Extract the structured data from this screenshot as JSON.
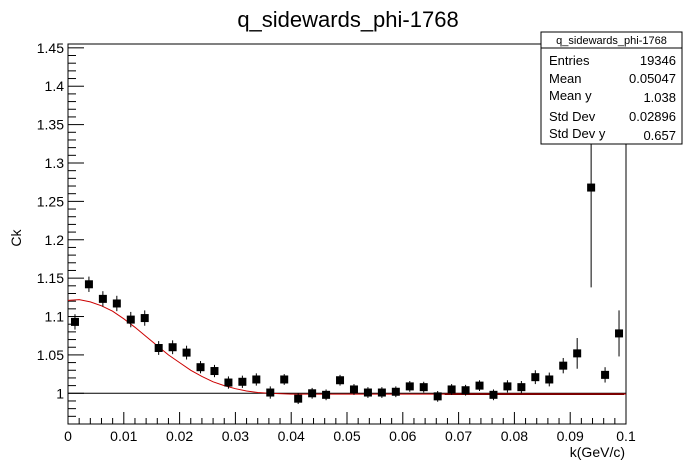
{
  "chart_data": {
    "type": "scatter",
    "title": "q_sidewards_phi-1768",
    "xlabel": "k(GeV/c)",
    "ylabel": "Ck",
    "xlim": [
      0,
      0.1
    ],
    "ylim": [
      0.96,
      1.455
    ],
    "x_ticks": [
      "0",
      "0.01",
      "0.02",
      "0.03",
      "0.04",
      "0.05",
      "0.06",
      "0.07",
      "0.08",
      "0.09",
      "0.1"
    ],
    "y_ticks": [
      "1",
      "1.05",
      "1.1",
      "1.15",
      "1.2",
      "1.25",
      "1.3",
      "1.35",
      "1.4",
      "1.45"
    ],
    "reference_line": 1.0,
    "series": [
      {
        "points": [
          {
            "x": 0.00125,
            "y": 1.093,
            "err": 0.01
          },
          {
            "x": 0.00375,
            "y": 1.142,
            "err": 0.01
          },
          {
            "x": 0.00625,
            "y": 1.123,
            "err": 0.01
          },
          {
            "x": 0.00875,
            "y": 1.117,
            "err": 0.01
          },
          {
            "x": 0.01125,
            "y": 1.096,
            "err": 0.01
          },
          {
            "x": 0.01375,
            "y": 1.098,
            "err": 0.01
          },
          {
            "x": 0.01625,
            "y": 1.059,
            "err": 0.009
          },
          {
            "x": 0.01875,
            "y": 1.06,
            "err": 0.009
          },
          {
            "x": 0.02125,
            "y": 1.053,
            "err": 0.009
          },
          {
            "x": 0.02375,
            "y": 1.034,
            "err": 0.008
          },
          {
            "x": 0.02625,
            "y": 1.029,
            "err": 0.008
          },
          {
            "x": 0.02875,
            "y": 1.014,
            "err": 0.008
          },
          {
            "x": 0.03125,
            "y": 1.015,
            "err": 0.008
          },
          {
            "x": 0.03375,
            "y": 1.018,
            "err": 0.008
          },
          {
            "x": 0.03625,
            "y": 1.001,
            "err": 0.008
          },
          {
            "x": 0.03875,
            "y": 1.018,
            "err": 0.007
          },
          {
            "x": 0.04125,
            "y": 0.993,
            "err": 0.007
          },
          {
            "x": 0.04375,
            "y": 1.0,
            "err": 0.007
          },
          {
            "x": 0.04625,
            "y": 0.998,
            "err": 0.007
          },
          {
            "x": 0.04875,
            "y": 1.017,
            "err": 0.007
          },
          {
            "x": 0.05125,
            "y": 1.005,
            "err": 0.007
          },
          {
            "x": 0.05375,
            "y": 1.001,
            "err": 0.007
          },
          {
            "x": 0.05625,
            "y": 1.001,
            "err": 0.007
          },
          {
            "x": 0.05875,
            "y": 1.002,
            "err": 0.007
          },
          {
            "x": 0.06125,
            "y": 1.009,
            "err": 0.007
          },
          {
            "x": 0.06375,
            "y": 1.008,
            "err": 0.007
          },
          {
            "x": 0.06625,
            "y": 0.996,
            "err": 0.007
          },
          {
            "x": 0.06875,
            "y": 1.005,
            "err": 0.007
          },
          {
            "x": 0.07125,
            "y": 1.004,
            "err": 0.007
          },
          {
            "x": 0.07375,
            "y": 1.01,
            "err": 0.007
          },
          {
            "x": 0.07625,
            "y": 0.998,
            "err": 0.007
          },
          {
            "x": 0.07875,
            "y": 1.009,
            "err": 0.008
          },
          {
            "x": 0.08125,
            "y": 1.008,
            "err": 0.008
          },
          {
            "x": 0.08375,
            "y": 1.021,
            "err": 0.009
          },
          {
            "x": 0.08625,
            "y": 1.018,
            "err": 0.009
          },
          {
            "x": 0.08875,
            "y": 1.036,
            "err": 0.01
          },
          {
            "x": 0.09125,
            "y": 1.052,
            "err": 0.02
          },
          {
            "x": 0.09375,
            "y": 1.268,
            "err": 0.13
          },
          {
            "x": 0.09625,
            "y": 1.024,
            "err": 0.01
          },
          {
            "x": 0.09875,
            "y": 1.078,
            "err": 0.03
          }
        ]
      }
    ],
    "fit_curve": {
      "color": "#cc0000",
      "points": [
        {
          "x": 0.0,
          "y": 1.121
        },
        {
          "x": 0.002,
          "y": 1.122
        },
        {
          "x": 0.004,
          "y": 1.119
        },
        {
          "x": 0.006,
          "y": 1.114
        },
        {
          "x": 0.008,
          "y": 1.107
        },
        {
          "x": 0.01,
          "y": 1.097
        },
        {
          "x": 0.012,
          "y": 1.086
        },
        {
          "x": 0.014,
          "y": 1.074
        },
        {
          "x": 0.016,
          "y": 1.062
        },
        {
          "x": 0.018,
          "y": 1.05
        },
        {
          "x": 0.02,
          "y": 1.04
        },
        {
          "x": 0.022,
          "y": 1.03
        },
        {
          "x": 0.024,
          "y": 1.022
        },
        {
          "x": 0.026,
          "y": 1.015
        },
        {
          "x": 0.028,
          "y": 1.01
        },
        {
          "x": 0.03,
          "y": 1.006
        },
        {
          "x": 0.032,
          "y": 1.003
        },
        {
          "x": 0.034,
          "y": 1.001
        },
        {
          "x": 0.036,
          "y": 1.0
        },
        {
          "x": 0.04,
          "y": 0.999
        },
        {
          "x": 0.1,
          "y": 0.999
        }
      ]
    },
    "stats_box": {
      "title": "q_sidewards_phi-1768",
      "rows": [
        {
          "label": "Entries",
          "value": "19346"
        },
        {
          "label": "Mean",
          "value": "0.05047"
        },
        {
          "label": "Mean y",
          "value": "1.038"
        },
        {
          "label": "Std Dev",
          "value": "0.02896"
        },
        {
          "label": "Std Dev y",
          "value": "0.657"
        }
      ]
    },
    "colors": {
      "marker": "#000000",
      "fit": "#cc0000",
      "axis": "#000000"
    }
  }
}
